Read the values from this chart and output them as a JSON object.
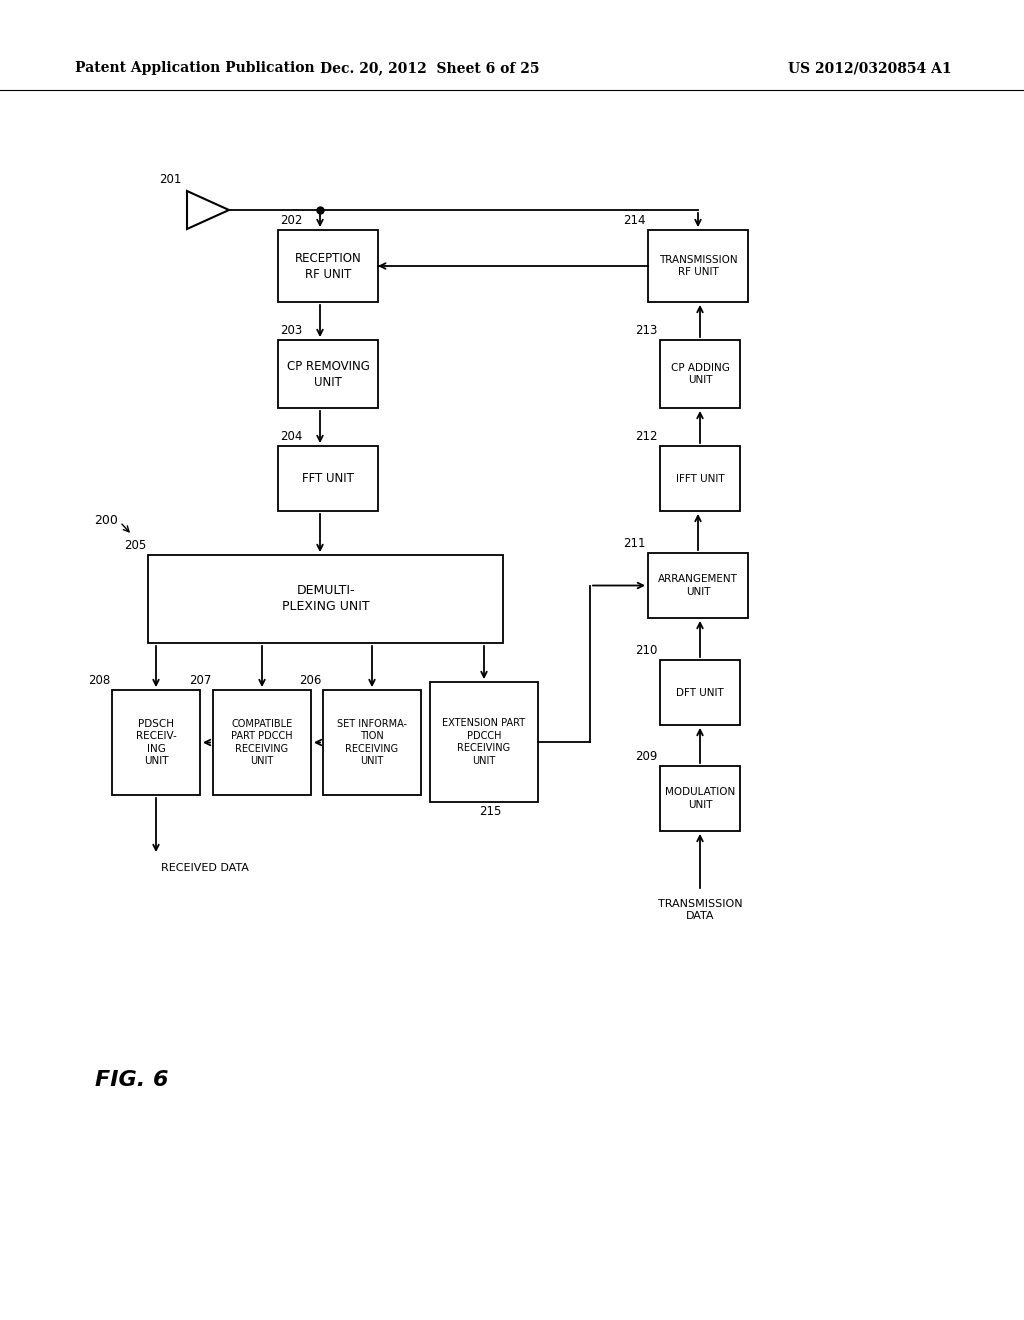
{
  "header_left": "Patent Application Publication",
  "header_mid": "Dec. 20, 2012  Sheet 6 of 25",
  "header_right": "US 2012/0320854 A1",
  "fig_label": "FIG. 6",
  "background_color": "#ffffff"
}
